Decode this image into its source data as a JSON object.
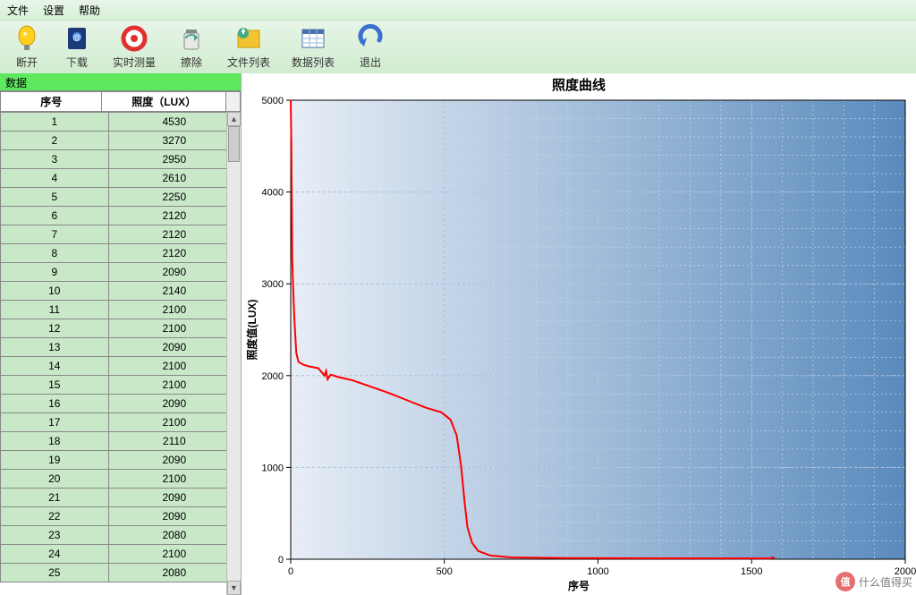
{
  "menu": {
    "file": "文件",
    "settings": "设置",
    "help": "帮助"
  },
  "toolbar": [
    {
      "id": "disconnect",
      "label": "断开"
    },
    {
      "id": "download",
      "label": "下载"
    },
    {
      "id": "realtime",
      "label": "实时测量"
    },
    {
      "id": "clear",
      "label": "擦除"
    },
    {
      "id": "filelist",
      "label": "文件列表"
    },
    {
      "id": "datalist",
      "label": "数据列表"
    },
    {
      "id": "exit",
      "label": "退出"
    }
  ],
  "panel": {
    "title": "数据"
  },
  "table": {
    "columns": {
      "index": "序号",
      "lux": "照度（LUX）"
    },
    "rows": [
      [
        1,
        4530
      ],
      [
        2,
        3270
      ],
      [
        3,
        2950
      ],
      [
        4,
        2610
      ],
      [
        5,
        2250
      ],
      [
        6,
        2120
      ],
      [
        7,
        2120
      ],
      [
        8,
        2120
      ],
      [
        9,
        2090
      ],
      [
        10,
        2140
      ],
      [
        11,
        2100
      ],
      [
        12,
        2100
      ],
      [
        13,
        2090
      ],
      [
        14,
        2100
      ],
      [
        15,
        2100
      ],
      [
        16,
        2090
      ],
      [
        17,
        2100
      ],
      [
        18,
        2110
      ],
      [
        19,
        2090
      ],
      [
        20,
        2100
      ],
      [
        21,
        2090
      ],
      [
        22,
        2090
      ],
      [
        23,
        2080
      ],
      [
        24,
        2100
      ],
      [
        25,
        2080
      ]
    ]
  },
  "chart": {
    "title": "照度曲线",
    "yLabel": "照度值(LUX)",
    "xLabel": "序号",
    "xlim": [
      0,
      2000
    ],
    "ylim": [
      0,
      5000
    ],
    "xticks": [
      0,
      500,
      1000,
      1500,
      2000
    ],
    "yticks": [
      0,
      1000,
      2000,
      3000,
      4000,
      5000
    ],
    "minorXStep": 100,
    "minorYStep": 200,
    "titleFontSize": 15,
    "labelFontSize": 12,
    "tickFontSize": 11,
    "bgStart": "#e8eef6",
    "bgEnd": "#5a8bbd",
    "minorGridColor": "#d0ddee",
    "majorGridColor": "#a8bede",
    "lineColor": "#ff0000",
    "lineWidth": 2,
    "points": [
      [
        0,
        5000
      ],
      [
        2,
        4530
      ],
      [
        5,
        3270
      ],
      [
        8,
        2950
      ],
      [
        12,
        2610
      ],
      [
        18,
        2250
      ],
      [
        25,
        2150
      ],
      [
        40,
        2120
      ],
      [
        60,
        2100
      ],
      [
        90,
        2080
      ],
      [
        110,
        2000
      ],
      [
        115,
        2050
      ],
      [
        120,
        1960
      ],
      [
        130,
        2010
      ],
      [
        160,
        1980
      ],
      [
        200,
        1950
      ],
      [
        260,
        1880
      ],
      [
        320,
        1810
      ],
      [
        380,
        1730
      ],
      [
        440,
        1650
      ],
      [
        490,
        1600
      ],
      [
        520,
        1520
      ],
      [
        540,
        1350
      ],
      [
        555,
        1000
      ],
      [
        565,
        650
      ],
      [
        575,
        350
      ],
      [
        590,
        180
      ],
      [
        610,
        90
      ],
      [
        650,
        40
      ],
      [
        720,
        20
      ],
      [
        900,
        12
      ],
      [
        1200,
        10
      ],
      [
        1560,
        8
      ],
      [
        1570,
        20
      ],
      [
        1575,
        8
      ]
    ]
  },
  "watermark": {
    "badge": "值",
    "text": "什么值得买"
  }
}
